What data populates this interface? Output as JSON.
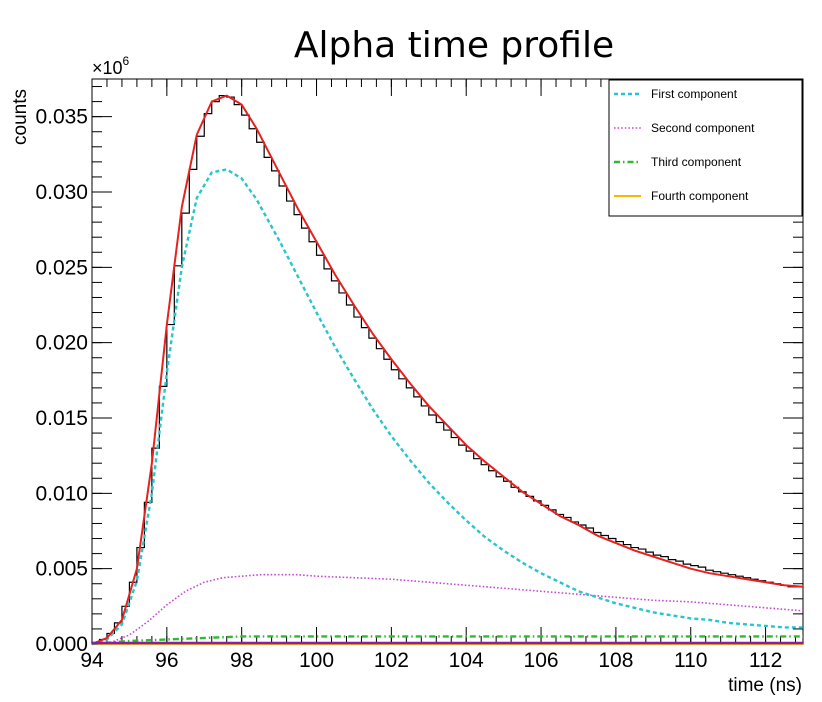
{
  "chart_data": {
    "type": "line",
    "title": "Alpha time profile",
    "xlabel": "time (ns)",
    "ylabel": "counts",
    "y_multiplier": "×10",
    "y_multiplier_exp": "6",
    "xlim": [
      94,
      113
    ],
    "ylim": [
      0,
      0.0375
    ],
    "x_ticks": [
      94,
      96,
      98,
      100,
      102,
      104,
      106,
      108,
      110,
      112
    ],
    "y_ticks": [
      0.0,
      0.005,
      0.01,
      0.015,
      0.02,
      0.025,
      0.03,
      0.035
    ],
    "y_tick_labels": [
      "0.000",
      "0.005",
      "0.010",
      "0.015",
      "0.020",
      "0.025",
      "0.030",
      "0.035"
    ],
    "grid": false,
    "legend_position": "top-right",
    "histogram": {
      "name": "",
      "color": "#000000",
      "bin_width": 0.2,
      "x_start": 94.0,
      "values": [
        0.0001,
        0.0003,
        0.0007,
        0.0014,
        0.0025,
        0.0041,
        0.0064,
        0.0094,
        0.013,
        0.0171,
        0.0212,
        0.0251,
        0.0286,
        0.0315,
        0.0337,
        0.0352,
        0.036,
        0.0364,
        0.0363,
        0.0358,
        0.0351,
        0.0342,
        0.0333,
        0.0323,
        0.0314,
        0.0304,
        0.0294,
        0.0285,
        0.0276,
        0.0267,
        0.0258,
        0.0249,
        0.0241,
        0.0233,
        0.0225,
        0.0217,
        0.021,
        0.0203,
        0.0196,
        0.0189,
        0.0182,
        0.0176,
        0.017,
        0.0164,
        0.0158,
        0.0152,
        0.0147,
        0.0142,
        0.0137,
        0.0132,
        0.0128,
        0.0123,
        0.0119,
        0.0115,
        0.0111,
        0.0108,
        0.0104,
        0.0101,
        0.0098,
        0.0095,
        0.0092,
        0.0089,
        0.0086,
        0.0084,
        0.0081,
        0.0079,
        0.0077,
        0.0074,
        0.0072,
        0.007,
        0.0068,
        0.0066,
        0.0064,
        0.0063,
        0.0061,
        0.0059,
        0.0058,
        0.0056,
        0.0055,
        0.0053,
        0.0052,
        0.0051,
        0.0049,
        0.0048,
        0.0047,
        0.0046,
        0.0045,
        0.0044,
        0.0043,
        0.0042,
        0.0041,
        0.004,
        0.0039,
        0.0038,
        0.0038
      ]
    },
    "series": [
      {
        "name": "",
        "style": "solid",
        "color": "#e8201e",
        "x": [
          94.0,
          94.4,
          94.8,
          95.2,
          95.6,
          96.0,
          96.4,
          96.8,
          97.2,
          97.6,
          98.0,
          98.4,
          99.0,
          99.5,
          100.0,
          100.5,
          101.0,
          101.5,
          102.0,
          102.5,
          103.0,
          103.5,
          104.0,
          104.5,
          105.0,
          105.5,
          106.0,
          106.5,
          107.0,
          107.5,
          108.0,
          108.5,
          109.0,
          109.5,
          110.0,
          110.5,
          111.0,
          111.5,
          112.0,
          112.5,
          113.0
        ],
        "y": [
          0.0,
          0.0004,
          0.0016,
          0.005,
          0.012,
          0.0212,
          0.029,
          0.0338,
          0.036,
          0.0364,
          0.0358,
          0.0342,
          0.0313,
          0.0289,
          0.0267,
          0.0245,
          0.0225,
          0.0206,
          0.0189,
          0.0173,
          0.0158,
          0.0145,
          0.0132,
          0.0121,
          0.0111,
          0.0101,
          0.0093,
          0.0085,
          0.0079,
          0.0072,
          0.0067,
          0.0062,
          0.0058,
          0.0054,
          0.005,
          0.0047,
          0.0045,
          0.0043,
          0.0041,
          0.0039,
          0.0038
        ]
      },
      {
        "name": "First component",
        "style": "dashed",
        "color": "#26c6cf",
        "x": [
          94.0,
          94.4,
          94.8,
          95.2,
          95.6,
          96.0,
          96.4,
          96.8,
          97.2,
          97.6,
          98.0,
          98.4,
          99.0,
          99.5,
          100.0,
          100.5,
          101.0,
          101.5,
          102.0,
          102.5,
          103.0,
          103.5,
          104.0,
          104.5,
          105.0,
          105.5,
          106.0,
          106.5,
          107.0,
          107.5,
          108.0,
          108.5,
          109.0,
          109.5,
          110.0,
          110.5,
          111.0,
          111.5,
          112.0,
          112.5,
          113.0
        ],
        "y": [
          0.0,
          0.0003,
          0.0013,
          0.0042,
          0.01,
          0.018,
          0.025,
          0.0296,
          0.0313,
          0.0315,
          0.0309,
          0.0295,
          0.0268,
          0.0244,
          0.022,
          0.0197,
          0.0176,
          0.0156,
          0.0138,
          0.0122,
          0.0107,
          0.0094,
          0.0082,
          0.0071,
          0.0062,
          0.0054,
          0.0047,
          0.0041,
          0.0035,
          0.0031,
          0.0027,
          0.0024,
          0.0021,
          0.0019,
          0.0017,
          0.0016,
          0.0014,
          0.0013,
          0.0012,
          0.0011,
          0.0011
        ]
      },
      {
        "name": "Second component",
        "style": "dotted",
        "color": "#c84bd6",
        "x": [
          94.0,
          94.5,
          95.0,
          95.5,
          96.0,
          96.5,
          97.0,
          97.5,
          98.0,
          98.5,
          99.0,
          99.5,
          100.0,
          101.0,
          102.0,
          103.0,
          104.0,
          105.0,
          106.0,
          107.0,
          108.0,
          109.0,
          110.0,
          111.0,
          112.0,
          113.0
        ],
        "y": [
          0.0,
          0.0001,
          0.0006,
          0.0015,
          0.0026,
          0.0035,
          0.0041,
          0.0044,
          0.0045,
          0.0046,
          0.0046,
          0.0046,
          0.0045,
          0.0044,
          0.0043,
          0.0041,
          0.0039,
          0.0037,
          0.0035,
          0.0033,
          0.0031,
          0.0029,
          0.0028,
          0.0026,
          0.0024,
          0.0022
        ]
      },
      {
        "name": "Third component",
        "style": "dashdot",
        "color": "#2dbb2d",
        "x": [
          94.0,
          95.0,
          96.0,
          97.0,
          98.0,
          99.0,
          100.0,
          102.0,
          104.0,
          106.0,
          108.0,
          110.0,
          112.0,
          113.0
        ],
        "y": [
          0.0,
          0.0002,
          0.0003,
          0.0004,
          0.0005,
          0.0005,
          0.0005,
          0.0005,
          0.0005,
          0.0005,
          0.0005,
          0.0005,
          0.0005,
          0.0005
        ]
      },
      {
        "name": "Fourth component",
        "style": "solid",
        "color": "#f4b800",
        "x": [
          94.0,
          113.0
        ],
        "y": [
          0.0,
          0.0
        ]
      }
    ],
    "baseline_color": "#8a1fa5"
  }
}
